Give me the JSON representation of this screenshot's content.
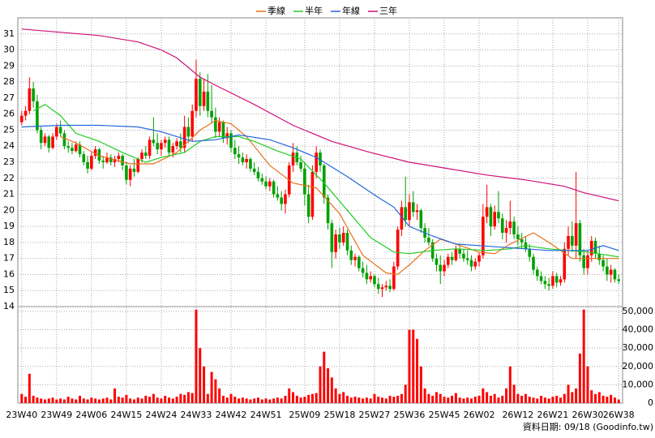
{
  "chart_data": {
    "type": "candlestick",
    "up_color": "#ff0000",
    "down_color": "#00a000",
    "grid": true,
    "xlim": [
      -1,
      155
    ],
    "xticks": [
      {
        "value": 0,
        "label": "23W40"
      },
      {
        "value": 9,
        "label": "23W49"
      },
      {
        "value": 18,
        "label": "24W06"
      },
      {
        "value": 27,
        "label": "24W15"
      },
      {
        "value": 36,
        "label": "24W24"
      },
      {
        "value": 45,
        "label": "24W33"
      },
      {
        "value": 54,
        "label": "24W42"
      },
      {
        "value": 63,
        "label": "24W51"
      },
      {
        "value": 73,
        "label": "25W09"
      },
      {
        "value": 82,
        "label": "25W18"
      },
      {
        "value": 91,
        "label": "25W27"
      },
      {
        "value": 100,
        "label": "25W36"
      },
      {
        "value": 109,
        "label": "25W45"
      },
      {
        "value": 118,
        "label": "26W02"
      },
      {
        "value": 128,
        "label": "26W12"
      },
      {
        "value": 137,
        "label": "26W21"
      },
      {
        "value": 146,
        "label": "26W30"
      },
      {
        "value": 154,
        "label": "26W38"
      }
    ],
    "ylim": [
      14,
      32
    ],
    "yticks": [
      14,
      15,
      16,
      17,
      18,
      19,
      20,
      21,
      22,
      23,
      24,
      25,
      26,
      27,
      28,
      29,
      30,
      31
    ],
    "ohlc": [
      [
        25.5,
        26.2,
        25.3,
        25.9
      ],
      [
        25.9,
        26.5,
        25.6,
        26.2
      ],
      [
        26.2,
        28.3,
        26.0,
        27.6
      ],
      [
        27.6,
        28.0,
        26.4,
        26.8
      ],
      [
        26.8,
        27.2,
        24.8,
        25.0
      ],
      [
        25.0,
        25.2,
        23.8,
        24.2
      ],
      [
        24.2,
        24.8,
        24.0,
        24.6
      ],
      [
        24.6,
        24.7,
        23.6,
        23.9
      ],
      [
        23.9,
        24.8,
        23.8,
        24.6
      ],
      [
        24.6,
        25.4,
        24.4,
        25.2
      ],
      [
        25.2,
        25.6,
        24.6,
        24.8
      ],
      [
        24.8,
        25.0,
        23.8,
        24.0
      ],
      [
        24.0,
        24.3,
        23.6,
        23.9
      ],
      [
        23.9,
        24.2,
        23.5,
        23.7
      ],
      [
        23.7,
        24.3,
        23.6,
        24.1
      ],
      [
        24.1,
        24.3,
        23.3,
        23.5
      ],
      [
        23.5,
        23.7,
        22.8,
        23.0
      ],
      [
        23.0,
        23.4,
        22.3,
        22.6
      ],
      [
        22.6,
        23.6,
        22.5,
        23.4
      ],
      [
        23.4,
        24.0,
        23.2,
        23.8
      ],
      [
        23.8,
        23.9,
        22.9,
        23.1
      ],
      [
        23.1,
        23.4,
        22.6,
        23.0
      ],
      [
        23.0,
        23.6,
        22.9,
        23.3
      ],
      [
        23.3,
        23.5,
        22.8,
        23.0
      ],
      [
        23.0,
        23.4,
        22.7,
        23.2
      ],
      [
        23.2,
        23.6,
        23.0,
        23.4
      ],
      [
        23.4,
        23.5,
        22.5,
        22.8
      ],
      [
        22.8,
        23.0,
        21.6,
        21.9
      ],
      [
        21.9,
        22.8,
        21.5,
        22.6
      ],
      [
        22.6,
        23.2,
        22.1,
        22.4
      ],
      [
        22.4,
        23.3,
        22.3,
        23.2
      ],
      [
        23.2,
        23.8,
        23.0,
        23.6
      ],
      [
        23.6,
        24.0,
        23.2,
        23.4
      ],
      [
        23.4,
        24.6,
        23.2,
        24.4
      ],
      [
        24.4,
        25.8,
        24.0,
        24.2
      ],
      [
        24.2,
        24.8,
        23.5,
        23.8
      ],
      [
        23.8,
        24.4,
        23.4,
        24.2
      ],
      [
        24.2,
        24.6,
        23.9,
        24.4
      ],
      [
        24.4,
        24.6,
        23.4,
        23.6
      ],
      [
        23.6,
        24.2,
        23.3,
        24.0
      ],
      [
        24.0,
        24.5,
        23.8,
        24.3
      ],
      [
        24.3,
        24.8,
        23.6,
        23.9
      ],
      [
        23.9,
        25.9,
        23.6,
        25.2
      ],
      [
        25.2,
        25.8,
        24.2,
        24.6
      ],
      [
        24.6,
        26.6,
        24.3,
        26.2
      ],
      [
        26.2,
        29.4,
        25.8,
        28.2
      ],
      [
        28.2,
        28.6,
        25.9,
        26.5
      ],
      [
        26.5,
        28.2,
        26.2,
        27.4
      ],
      [
        27.4,
        28.5,
        25.8,
        26.2
      ],
      [
        26.2,
        27.8,
        25.4,
        25.8
      ],
      [
        25.8,
        26.4,
        24.5,
        24.9
      ],
      [
        24.9,
        25.8,
        24.6,
        25.5
      ],
      [
        25.5,
        25.6,
        24.2,
        24.5
      ],
      [
        24.5,
        25.2,
        24.1,
        24.8
      ],
      [
        24.8,
        25.0,
        23.6,
        23.9
      ],
      [
        23.9,
        24.4,
        23.2,
        23.5
      ],
      [
        23.5,
        24.0,
        22.9,
        23.3
      ],
      [
        23.3,
        23.6,
        22.8,
        23.0
      ],
      [
        23.0,
        23.5,
        22.6,
        23.2
      ],
      [
        23.2,
        23.3,
        22.4,
        22.6
      ],
      [
        22.6,
        23.0,
        22.2,
        22.4
      ],
      [
        22.4,
        22.7,
        21.8,
        22.0
      ],
      [
        22.0,
        22.3,
        21.6,
        21.8
      ],
      [
        21.8,
        22.1,
        21.3,
        21.5
      ],
      [
        21.5,
        22.0,
        21.2,
        21.8
      ],
      [
        21.8,
        21.9,
        20.8,
        21.0
      ],
      [
        21.0,
        21.5,
        20.6,
        20.8
      ],
      [
        20.8,
        21.2,
        20.0,
        20.4
      ],
      [
        20.4,
        21.3,
        19.8,
        21.0
      ],
      [
        21.0,
        23.0,
        20.8,
        22.8
      ],
      [
        22.8,
        24.2,
        22.4,
        23.6
      ],
      [
        23.6,
        24.0,
        22.8,
        23.0
      ],
      [
        23.0,
        23.4,
        22.4,
        22.6
      ],
      [
        22.6,
        23.0,
        20.3,
        21.0
      ],
      [
        21.0,
        21.6,
        19.2,
        19.6
      ],
      [
        19.6,
        22.8,
        19.4,
        22.4
      ],
      [
        22.4,
        24.0,
        22.0,
        23.6
      ],
      [
        23.6,
        23.8,
        22.4,
        22.8
      ],
      [
        22.8,
        22.9,
        20.4,
        20.8
      ],
      [
        20.8,
        21.0,
        18.8,
        19.2
      ],
      [
        19.2,
        19.4,
        16.4,
        17.4
      ],
      [
        17.4,
        18.8,
        17.0,
        18.5
      ],
      [
        18.5,
        18.9,
        17.6,
        18.0
      ],
      [
        18.0,
        19.0,
        17.8,
        18.6
      ],
      [
        18.6,
        18.8,
        17.2,
        17.5
      ],
      [
        17.5,
        17.8,
        16.6,
        16.9
      ],
      [
        16.9,
        17.3,
        16.5,
        17.1
      ],
      [
        17.1,
        17.2,
        16.2,
        16.4
      ],
      [
        16.4,
        16.8,
        15.8,
        16.1
      ],
      [
        16.1,
        16.6,
        15.4,
        15.7
      ],
      [
        15.7,
        16.2,
        15.5,
        15.9
      ],
      [
        15.9,
        16.0,
        15.2,
        15.4
      ],
      [
        15.4,
        15.8,
        14.8,
        15.1
      ],
      [
        15.1,
        15.4,
        14.6,
        15.2
      ],
      [
        15.2,
        15.6,
        15.0,
        15.3
      ],
      [
        15.3,
        15.7,
        14.9,
        15.1
      ],
      [
        15.1,
        16.8,
        15.0,
        16.5
      ],
      [
        16.5,
        19.0,
        16.3,
        18.8
      ],
      [
        18.8,
        20.6,
        18.4,
        20.2
      ],
      [
        20.2,
        22.1,
        19.0,
        19.4
      ],
      [
        19.4,
        21.0,
        19.0,
        20.5
      ],
      [
        20.5,
        21.2,
        19.6,
        19.9
      ],
      [
        19.9,
        20.4,
        19.4,
        20.0
      ],
      [
        20.0,
        20.1,
        18.6,
        18.9
      ],
      [
        18.9,
        19.2,
        18.0,
        18.3
      ],
      [
        18.3,
        18.9,
        17.8,
        18.0
      ],
      [
        18.0,
        18.2,
        16.8,
        17.0
      ],
      [
        17.0,
        17.3,
        16.2,
        16.6
      ],
      [
        16.6,
        17.2,
        15.4,
        16.2
      ],
      [
        16.2,
        16.9,
        15.9,
        16.6
      ],
      [
        16.6,
        17.3,
        16.4,
        17.1
      ],
      [
        17.1,
        17.4,
        16.6,
        16.9
      ],
      [
        16.9,
        17.8,
        16.8,
        17.6
      ],
      [
        17.6,
        17.9,
        17.0,
        17.3
      ],
      [
        17.3,
        17.6,
        16.8,
        17.0
      ],
      [
        17.0,
        17.5,
        16.6,
        16.9
      ],
      [
        16.9,
        17.2,
        16.2,
        16.5
      ],
      [
        16.5,
        17.0,
        16.3,
        16.8
      ],
      [
        16.8,
        17.4,
        16.5,
        17.2
      ],
      [
        17.2,
        20.4,
        17.0,
        19.6
      ],
      [
        19.6,
        21.6,
        19.2,
        20.2
      ],
      [
        20.2,
        20.4,
        18.4,
        19.0
      ],
      [
        19.0,
        20.3,
        18.8,
        19.9
      ],
      [
        19.9,
        21.2,
        19.2,
        19.5
      ],
      [
        19.5,
        19.8,
        18.2,
        18.6
      ],
      [
        18.6,
        19.4,
        18.0,
        18.9
      ],
      [
        18.9,
        20.6,
        18.5,
        19.3
      ],
      [
        19.3,
        19.6,
        18.2,
        18.5
      ],
      [
        18.5,
        19.0,
        17.8,
        18.2
      ],
      [
        18.2,
        18.6,
        17.6,
        18.0
      ],
      [
        18.0,
        18.4,
        17.4,
        17.6
      ],
      [
        17.6,
        17.9,
        16.8,
        17.1
      ],
      [
        17.1,
        17.3,
        16.0,
        16.3
      ],
      [
        16.3,
        16.5,
        15.6,
        15.9
      ],
      [
        15.9,
        16.2,
        15.4,
        15.6
      ],
      [
        15.6,
        15.9,
        15.1,
        15.4
      ],
      [
        15.4,
        15.8,
        15.0,
        15.3
      ],
      [
        15.3,
        16.2,
        15.1,
        15.9
      ],
      [
        15.9,
        16.1,
        15.2,
        15.5
      ],
      [
        15.5,
        15.9,
        15.3,
        15.7
      ],
      [
        15.7,
        18.0,
        15.5,
        17.6
      ],
      [
        17.6,
        19.0,
        17.2,
        18.4
      ],
      [
        18.4,
        19.3,
        17.4,
        17.8
      ],
      [
        17.8,
        22.4,
        17.0,
        19.2
      ],
      [
        19.2,
        19.4,
        16.8,
        17.2
      ],
      [
        17.2,
        17.6,
        16.0,
        16.4
      ],
      [
        16.4,
        17.5,
        16.0,
        17.2
      ],
      [
        17.2,
        18.4,
        16.8,
        18.1
      ],
      [
        18.1,
        18.3,
        17.0,
        17.3
      ],
      [
        17.3,
        17.8,
        16.6,
        16.9
      ],
      [
        16.9,
        17.2,
        16.2,
        16.5
      ],
      [
        16.5,
        17.0,
        15.6,
        16.0
      ],
      [
        16.0,
        16.6,
        15.5,
        16.3
      ],
      [
        16.3,
        16.4,
        15.5,
        15.7
      ],
      [
        15.7,
        16.0,
        15.4,
        15.6
      ]
    ],
    "series": [
      {
        "name": "季線",
        "color": "#e8701a",
        "x": [
          10,
          14,
          20,
          28,
          34,
          40,
          46,
          50,
          54,
          58,
          64,
          70,
          76,
          82,
          88,
          94,
          97,
          100,
          104,
          108,
          112,
          118,
          122,
          126,
          132,
          136,
          142,
          148,
          154
        ],
        "values": [
          24.6,
          24.2,
          23.4,
          22.9,
          22.9,
          23.6,
          25.0,
          25.6,
          25.4,
          24.6,
          22.8,
          21.7,
          21.4,
          19.8,
          17.2,
          16.1,
          16.0,
          16.6,
          17.5,
          18.2,
          17.9,
          17.4,
          17.3,
          17.9,
          18.6,
          18.0,
          17.0,
          17.0,
          17.0
        ]
      },
      {
        "name": "半年",
        "color": "#22cc22",
        "x": [
          3,
          6,
          10,
          14,
          20,
          26,
          32,
          36,
          42,
          46,
          50,
          56,
          60,
          66,
          72,
          78,
          84,
          90,
          96,
          100,
          106,
          112,
          120,
          126,
          130,
          136,
          146,
          154
        ],
        "values": [
          26.2,
          26.6,
          25.9,
          24.8,
          24.3,
          23.6,
          23.0,
          23.3,
          23.6,
          24.3,
          24.6,
          24.6,
          24.3,
          23.7,
          23.2,
          21.7,
          20.0,
          18.3,
          17.4,
          17.3,
          17.5,
          17.6,
          17.5,
          17.6,
          17.8,
          17.6,
          17.4,
          17.1
        ]
      },
      {
        "name": "年線",
        "color": "#2266dd",
        "x": [
          0,
          10,
          20,
          30,
          36,
          44,
          50,
          56,
          64,
          70,
          76,
          84,
          92,
          96,
          100,
          106,
          112,
          118,
          124,
          130,
          136,
          146,
          150,
          154
        ],
        "values": [
          25.2,
          25.3,
          25.3,
          25.2,
          24.9,
          24.3,
          24.4,
          24.7,
          24.4,
          23.9,
          23.3,
          22.1,
          20.8,
          20.2,
          19.0,
          18.4,
          17.9,
          17.8,
          17.7,
          17.6,
          17.5,
          17.5,
          17.8,
          17.5
        ]
      },
      {
        "name": "三年",
        "color": "#cc1177",
        "x": [
          0,
          10,
          20,
          30,
          36,
          40,
          46,
          50,
          60,
          70,
          80,
          90,
          100,
          110,
          120,
          130,
          140,
          145,
          154
        ],
        "values": [
          31.3,
          31.1,
          30.9,
          30.5,
          30.0,
          29.5,
          28.3,
          27.8,
          26.6,
          25.3,
          24.3,
          23.6,
          23.0,
          22.6,
          22.2,
          21.9,
          21.5,
          21.1,
          20.6
        ]
      }
    ],
    "volume": {
      "ylim": [
        0,
        52600
      ],
      "yticks": [
        0,
        {
          "value": 10000,
          "label": "10,000"
        },
        {
          "value": 20000,
          "label": "20,000"
        },
        {
          "value": 30000,
          "label": "30,000"
        },
        {
          "value": 40000,
          "label": "40,000"
        },
        {
          "value": 50000,
          "label": "50,000"
        }
      ],
      "color": "#ff0000",
      "values": [
        5000,
        3500,
        16000,
        4000,
        3000,
        2500,
        2000,
        2500,
        3000,
        2000,
        2500,
        2000,
        3500,
        2500,
        2000,
        4000,
        2500,
        2000,
        3000,
        2500,
        2000,
        2500,
        3000,
        2000,
        8000,
        3500,
        3000,
        4500,
        2500,
        2000,
        3000,
        2500,
        4000,
        3500,
        5000,
        3000,
        2500,
        4000,
        3000,
        2500,
        3500,
        5000,
        4500,
        6000,
        5500,
        51000,
        30000,
        20000,
        5000,
        17000,
        13000,
        8000,
        4000,
        3000,
        5000,
        3500,
        2500,
        3000,
        2500,
        2000,
        2500,
        3000,
        2000,
        2500,
        2000,
        2500,
        3000,
        2500,
        4000,
        8000,
        6000,
        4000,
        3000,
        3500,
        4500,
        5000,
        5500,
        20000,
        28000,
        19000,
        14000,
        8000,
        5000,
        6000,
        4000,
        3000,
        3500,
        3000,
        2500,
        3000,
        2500,
        5000,
        3500,
        3000,
        2500,
        4000,
        3500,
        4000,
        5000,
        10000,
        40000,
        40000,
        35000,
        20000,
        8000,
        5000,
        4000,
        6000,
        5000,
        3500,
        3000,
        4000,
        5500,
        3000,
        2500,
        3000,
        2500,
        3500,
        4000,
        8000,
        6000,
        4000,
        5000,
        3000,
        4000,
        8000,
        20000,
        10000,
        5000,
        4000,
        5000,
        3500,
        3000,
        2500,
        4000,
        3000,
        2500,
        3500,
        4000,
        3000,
        5000,
        10000,
        6000,
        8000,
        27000,
        51000,
        20000,
        7000,
        5000,
        6000,
        4000,
        3500,
        4500,
        3000,
        2000
      ]
    },
    "footer": "資料日期: 09/18 (Goodinfo.tw)"
  }
}
